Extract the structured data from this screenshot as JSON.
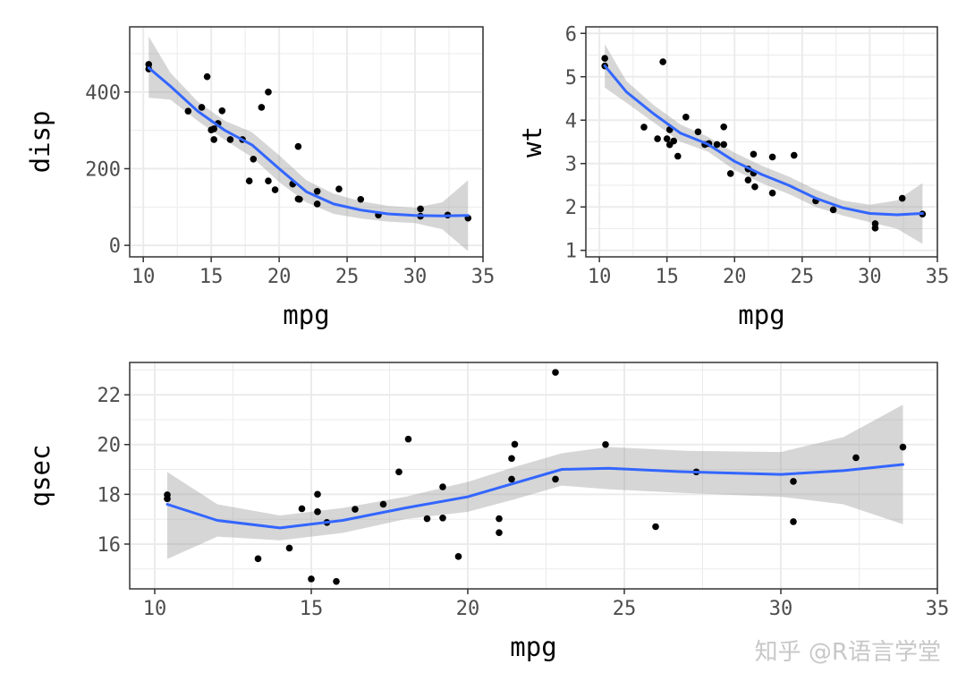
{
  "chart_data": [
    {
      "type": "scatter",
      "smoother": "loess with 95% confidence band",
      "xlabel": "mpg",
      "ylabel": "disp",
      "xlim": [
        9,
        35
      ],
      "ylim": [
        -30,
        570
      ],
      "xticks": [
        10,
        15,
        20,
        25,
        30,
        35
      ],
      "yticks": [
        0,
        200,
        400
      ],
      "colors": {
        "points": "#000000",
        "smooth_line": "#3366ff",
        "band": "#999999",
        "grid": "#ebebeb",
        "panel_border": "#333333"
      },
      "points": [
        [
          10.4,
          472
        ],
        [
          10.4,
          460
        ],
        [
          13.3,
          350
        ],
        [
          14.3,
          360
        ],
        [
          14.7,
          440
        ],
        [
          15.0,
          301
        ],
        [
          15.2,
          304
        ],
        [
          15.2,
          276
        ],
        [
          15.5,
          318
        ],
        [
          15.8,
          351
        ],
        [
          16.4,
          276
        ],
        [
          17.3,
          276
        ],
        [
          17.8,
          168
        ],
        [
          18.1,
          225
        ],
        [
          18.7,
          360
        ],
        [
          19.2,
          168
        ],
        [
          19.2,
          400
        ],
        [
          19.7,
          145
        ],
        [
          21.0,
          160
        ],
        [
          21.0,
          160
        ],
        [
          21.4,
          121
        ],
        [
          21.4,
          258
        ],
        [
          21.5,
          120
        ],
        [
          22.8,
          108
        ],
        [
          22.8,
          141
        ],
        [
          24.4,
          147
        ],
        [
          26.0,
          120
        ],
        [
          27.3,
          79
        ],
        [
          30.4,
          76
        ],
        [
          30.4,
          95
        ],
        [
          32.4,
          79
        ],
        [
          33.9,
          71
        ]
      ],
      "smooth": [
        [
          10.4,
          463
        ],
        [
          12,
          415
        ],
        [
          14,
          350
        ],
        [
          16,
          300
        ],
        [
          18,
          262
        ],
        [
          20,
          200
        ],
        [
          22,
          140
        ],
        [
          24,
          108
        ],
        [
          26,
          92
        ],
        [
          28,
          82
        ],
        [
          30,
          78
        ],
        [
          32,
          77
        ],
        [
          33.9,
          78
        ]
      ],
      "band_upper": [
        [
          10.4,
          545
        ],
        [
          12,
          450
        ],
        [
          14,
          375
        ],
        [
          16,
          325
        ],
        [
          18,
          295
        ],
        [
          20,
          235
        ],
        [
          22,
          170
        ],
        [
          24,
          135
        ],
        [
          26,
          115
        ],
        [
          28,
          103
        ],
        [
          30,
          98
        ],
        [
          32,
          112
        ],
        [
          33.9,
          170
        ]
      ],
      "band_lower": [
        [
          10.4,
          385
        ],
        [
          12,
          380
        ],
        [
          14,
          325
        ],
        [
          16,
          275
        ],
        [
          18,
          230
        ],
        [
          20,
          165
        ],
        [
          22,
          112
        ],
        [
          24,
          82
        ],
        [
          26,
          70
        ],
        [
          28,
          62
        ],
        [
          30,
          58
        ],
        [
          32,
          42
        ],
        [
          33.9,
          -15
        ]
      ]
    },
    {
      "type": "scatter",
      "smoother": "loess with 95% confidence band",
      "xlabel": "mpg",
      "ylabel": "wt",
      "xlim": [
        9,
        35
      ],
      "ylim": [
        0.85,
        6.15
      ],
      "xticks": [
        10,
        15,
        20,
        25,
        30,
        35
      ],
      "yticks": [
        1,
        2,
        3,
        4,
        5,
        6
      ],
      "colors": {
        "points": "#000000",
        "smooth_line": "#3366ff",
        "band": "#999999",
        "grid": "#ebebeb",
        "panel_border": "#333333"
      },
      "points": [
        [
          10.4,
          5.25
        ],
        [
          10.4,
          5.424
        ],
        [
          13.3,
          3.84
        ],
        [
          14.3,
          3.57
        ],
        [
          14.7,
          5.345
        ],
        [
          15.0,
          3.57
        ],
        [
          15.2,
          3.78
        ],
        [
          15.2,
          3.435
        ],
        [
          15.5,
          3.52
        ],
        [
          15.8,
          3.17
        ],
        [
          16.4,
          4.07
        ],
        [
          17.3,
          3.73
        ],
        [
          17.8,
          3.44
        ],
        [
          18.1,
          3.46
        ],
        [
          18.7,
          3.44
        ],
        [
          19.2,
          3.44
        ],
        [
          19.2,
          3.845
        ],
        [
          19.7,
          2.77
        ],
        [
          21.0,
          2.62
        ],
        [
          21.0,
          2.875
        ],
        [
          21.4,
          3.215
        ],
        [
          21.4,
          2.78
        ],
        [
          21.5,
          2.465
        ],
        [
          22.8,
          2.32
        ],
        [
          22.8,
          3.15
        ],
        [
          24.4,
          3.19
        ],
        [
          26.0,
          2.14
        ],
        [
          27.3,
          1.935
        ],
        [
          30.4,
          1.615
        ],
        [
          30.4,
          1.513
        ],
        [
          32.4,
          2.2
        ],
        [
          33.9,
          1.835
        ]
      ],
      "smooth": [
        [
          10.4,
          5.25
        ],
        [
          12,
          4.65
        ],
        [
          14,
          4.15
        ],
        [
          16,
          3.7
        ],
        [
          18,
          3.45
        ],
        [
          20,
          3.05
        ],
        [
          22,
          2.75
        ],
        [
          24,
          2.5
        ],
        [
          26,
          2.2
        ],
        [
          28,
          1.98
        ],
        [
          30,
          1.85
        ],
        [
          32,
          1.82
        ],
        [
          33.9,
          1.85
        ]
      ],
      "band_upper": [
        [
          10.4,
          5.75
        ],
        [
          12,
          4.9
        ],
        [
          14,
          4.35
        ],
        [
          16,
          3.9
        ],
        [
          18,
          3.62
        ],
        [
          20,
          3.25
        ],
        [
          22,
          2.95
        ],
        [
          24,
          2.7
        ],
        [
          26,
          2.4
        ],
        [
          28,
          2.15
        ],
        [
          30,
          2.05
        ],
        [
          32,
          2.15
        ],
        [
          33.9,
          2.55
        ]
      ],
      "band_lower": [
        [
          10.4,
          4.75
        ],
        [
          12,
          4.4
        ],
        [
          14,
          3.95
        ],
        [
          16,
          3.5
        ],
        [
          18,
          3.28
        ],
        [
          20,
          2.85
        ],
        [
          22,
          2.55
        ],
        [
          24,
          2.3
        ],
        [
          26,
          2.0
        ],
        [
          28,
          1.8
        ],
        [
          30,
          1.65
        ],
        [
          32,
          1.5
        ],
        [
          33.9,
          1.15
        ]
      ]
    },
    {
      "type": "scatter",
      "smoother": "loess with 95% confidence band",
      "xlabel": "mpg",
      "ylabel": "qsec",
      "xlim": [
        9.2,
        35
      ],
      "ylim": [
        14.2,
        23.3
      ],
      "xticks": [
        10,
        15,
        20,
        25,
        30,
        35
      ],
      "yticks": [
        16,
        18,
        20,
        22
      ],
      "colors": {
        "points": "#000000",
        "smooth_line": "#3366ff",
        "band": "#999999",
        "grid": "#ebebeb",
        "panel_border": "#333333"
      },
      "points": [
        [
          10.4,
          17.98
        ],
        [
          10.4,
          17.82
        ],
        [
          13.3,
          15.41
        ],
        [
          14.3,
          15.84
        ],
        [
          14.7,
          17.42
        ],
        [
          15.0,
          14.6
        ],
        [
          15.2,
          17.3
        ],
        [
          15.2,
          18.0
        ],
        [
          15.5,
          16.87
        ],
        [
          15.8,
          14.5
        ],
        [
          16.4,
          17.4
        ],
        [
          17.3,
          17.6
        ],
        [
          17.8,
          18.9
        ],
        [
          18.1,
          20.22
        ],
        [
          18.7,
          17.02
        ],
        [
          19.2,
          18.3
        ],
        [
          19.2,
          17.05
        ],
        [
          19.7,
          15.5
        ],
        [
          21.0,
          16.46
        ],
        [
          21.0,
          17.02
        ],
        [
          21.4,
          19.44
        ],
        [
          21.4,
          18.61
        ],
        [
          21.5,
          20.01
        ],
        [
          22.8,
          18.61
        ],
        [
          22.8,
          22.9
        ],
        [
          24.4,
          20.0
        ],
        [
          26.0,
          16.7
        ],
        [
          27.3,
          18.9
        ],
        [
          30.4,
          18.52
        ],
        [
          30.4,
          16.9
        ],
        [
          32.4,
          19.47
        ],
        [
          33.9,
          19.9
        ]
      ],
      "smooth": [
        [
          10.4,
          17.6
        ],
        [
          12,
          16.95
        ],
        [
          14,
          16.65
        ],
        [
          16,
          16.95
        ],
        [
          18,
          17.45
        ],
        [
          20,
          17.9
        ],
        [
          21.5,
          18.45
        ],
        [
          23,
          19.0
        ],
        [
          24.5,
          19.05
        ],
        [
          27,
          18.9
        ],
        [
          30,
          18.8
        ],
        [
          32,
          18.95
        ],
        [
          33.9,
          19.2
        ]
      ],
      "band_upper": [
        [
          10.4,
          18.9
        ],
        [
          12,
          17.6
        ],
        [
          14,
          17.15
        ],
        [
          16,
          17.45
        ],
        [
          18,
          17.9
        ],
        [
          20,
          18.5
        ],
        [
          21.5,
          19.1
        ],
        [
          23,
          19.65
        ],
        [
          24.5,
          19.9
        ],
        [
          27,
          19.75
        ],
        [
          30,
          19.7
        ],
        [
          32,
          20.3
        ],
        [
          33.9,
          21.6
        ]
      ],
      "band_lower": [
        [
          10.4,
          15.4
        ],
        [
          12,
          16.3
        ],
        [
          14,
          16.15
        ],
        [
          16,
          16.45
        ],
        [
          18,
          17.0
        ],
        [
          20,
          17.3
        ],
        [
          21.5,
          17.8
        ],
        [
          23,
          18.35
        ],
        [
          24.5,
          18.2
        ],
        [
          27,
          18.05
        ],
        [
          30,
          17.9
        ],
        [
          32,
          17.6
        ],
        [
          33.9,
          16.8
        ]
      ]
    }
  ],
  "watermark": "知乎 @R语言学堂"
}
